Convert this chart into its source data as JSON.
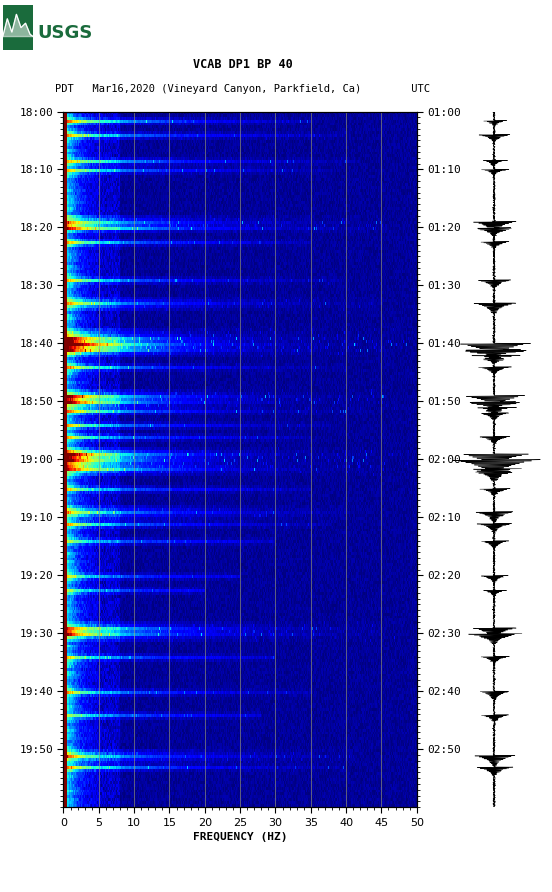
{
  "title_line1": "VCAB DP1 BP 40",
  "title_line2": "PDT   Mar16,2020 (Vineyard Canyon, Parkfield, Ca)        UTC",
  "xlabel": "FREQUENCY (HZ)",
  "freq_min": 0,
  "freq_max": 50,
  "freq_ticks": [
    0,
    5,
    10,
    15,
    20,
    25,
    30,
    35,
    40,
    45,
    50
  ],
  "pdt_times": [
    "18:00",
    "18:10",
    "18:20",
    "18:30",
    "18:40",
    "18:50",
    "19:00",
    "19:10",
    "19:20",
    "19:30",
    "19:40",
    "19:50"
  ],
  "utc_times": [
    "01:00",
    "01:10",
    "01:20",
    "01:30",
    "01:40",
    "01:50",
    "02:00",
    "02:10",
    "02:20",
    "02:30",
    "02:40",
    "02:50"
  ],
  "n_time_bins": 240,
  "n_freq_bins": 500,
  "background_color": "#ffffff",
  "colormap": "jet",
  "grid_color": "#9f9f70",
  "grid_alpha": 0.7,
  "vline_freqs": [
    5,
    10,
    15,
    20,
    25,
    30,
    35,
    40,
    45
  ],
  "usgs_green": "#1a6b3c",
  "fig_width": 5.52,
  "fig_height": 8.92,
  "dpi": 100
}
